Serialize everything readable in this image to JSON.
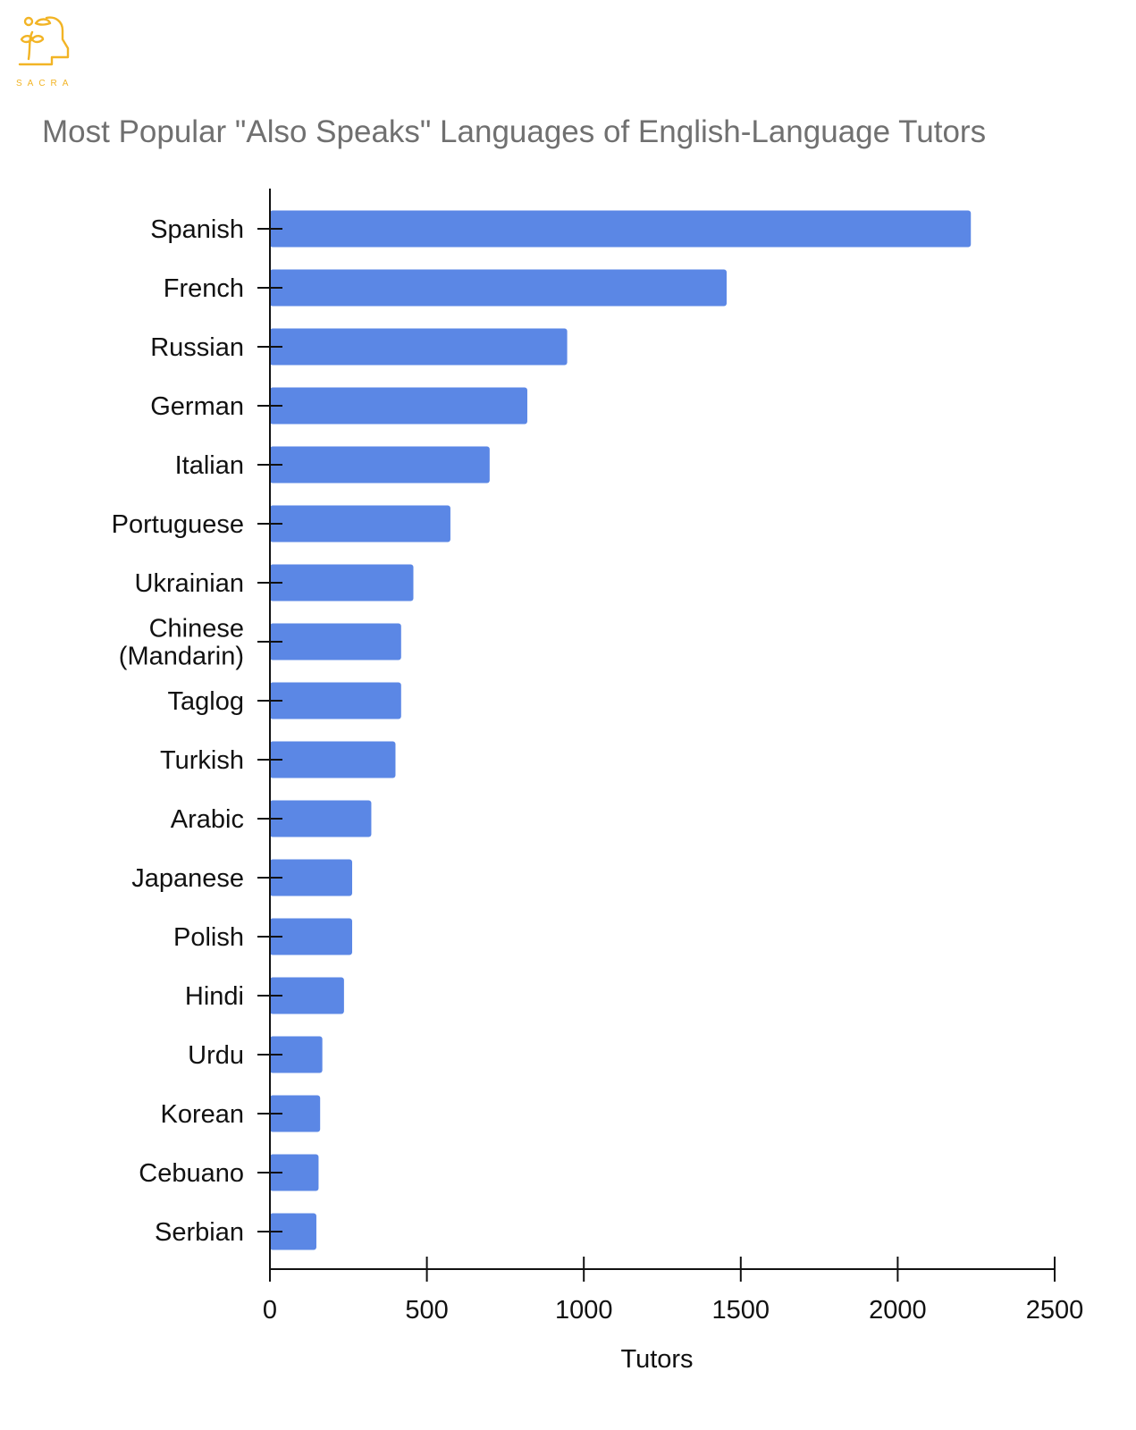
{
  "brand": {
    "name": "SACRA",
    "logo_color": "#f2b425"
  },
  "chart_data": {
    "type": "bar",
    "orientation": "horizontal",
    "title": "Most Popular \"Also Speaks\" Languages of English-Language Tutors",
    "xlabel": "Tutors",
    "ylabel": "",
    "xlim": [
      0,
      2500
    ],
    "xticks": [
      0,
      500,
      1000,
      1500,
      2000,
      2500
    ],
    "grid": false,
    "legend": "none",
    "bar_color": "#5b87e5",
    "categories": [
      [
        "Spanish"
      ],
      [
        "French"
      ],
      [
        "Russian"
      ],
      [
        "German"
      ],
      [
        "Italian"
      ],
      [
        "Portuguese"
      ],
      [
        "Ukrainian"
      ],
      [
        "Chinese",
        "(Mandarin)"
      ],
      [
        "Taglog"
      ],
      [
        "Turkish"
      ],
      [
        "Arabic"
      ],
      [
        "Japanese"
      ],
      [
        "Polish"
      ],
      [
        "Hindi"
      ],
      [
        "Urdu"
      ],
      [
        "Korean"
      ],
      [
        "Cebuano"
      ],
      [
        "Serbian"
      ]
    ],
    "values": [
      2233,
      1455,
      947,
      820,
      700,
      575,
      457,
      418,
      418,
      400,
      323,
      262,
      262,
      236,
      167,
      160,
      155,
      148
    ]
  }
}
